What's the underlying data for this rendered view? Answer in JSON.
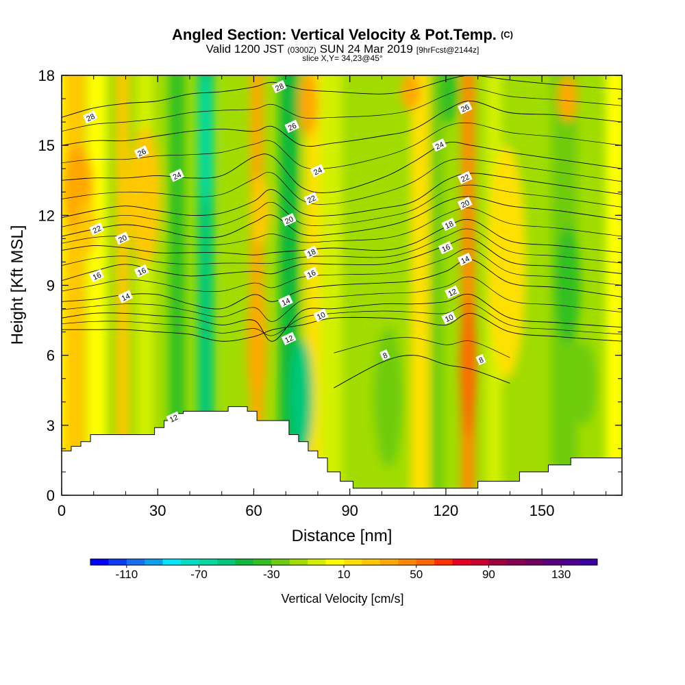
{
  "chart_data": {
    "type": "heatmap",
    "title": "Angled Section: Vertical Velocity & Pot.Temp.",
    "title_unit": "(C)",
    "subtitle_parts": [
      "Valid 1200 JST",
      "(0300Z)",
      "SUN 24 Mar 2019",
      "[9hrFcst@2144z]"
    ],
    "slice_label": "slice X,Y= 34,23@45°",
    "xlabel": "Distance [nm]",
    "ylabel": "Height [Kft MSL]",
    "xlim": [
      0,
      175
    ],
    "ylim": [
      0,
      18
    ],
    "x_ticks": [
      0,
      30,
      60,
      90,
      120,
      150
    ],
    "x_tick_labels": [
      "0",
      "30",
      "60",
      "90",
      "120",
      "150"
    ],
    "y_ticks": [
      0,
      3,
      6,
      9,
      12,
      15,
      18
    ],
    "y_tick_labels": [
      "0",
      "3",
      "6",
      "9",
      "12",
      "15",
      "18"
    ],
    "colorbar": {
      "label": "Vertical Velocity [cm/s]",
      "min": -130,
      "max": 150,
      "step": 10,
      "tick_values": [
        -110,
        -70,
        -30,
        10,
        50,
        90,
        130
      ],
      "tick_labels": [
        "-110",
        "-70",
        "-30",
        "10",
        "50",
        "90",
        "130"
      ],
      "colors": [
        "#0000ff",
        "#0a3cf5",
        "#1470f0",
        "#0aa0f0",
        "#00e6ff",
        "#00e0c8",
        "#00d8a0",
        "#00c87a",
        "#10b83a",
        "#30c020",
        "#6ecc10",
        "#a0dc00",
        "#d4f000",
        "#ffff00",
        "#ffe000",
        "#ffc800",
        "#ffa800",
        "#ff8800",
        "#ff6800",
        "#ff3000",
        "#e80020",
        "#cc0030",
        "#a00040",
        "#880050",
        "#700060",
        "#5a0080",
        "#4b0090",
        "#3c00a0"
      ]
    },
    "velocity_columns": [
      {
        "x": 0,
        "w": 6,
        "value": 0
      },
      {
        "x": 4,
        "w": 7,
        "value": 20
      },
      {
        "x": 11,
        "w": 6,
        "value": 0
      },
      {
        "x": 19,
        "w": 4,
        "value": 20
      },
      {
        "x": 26,
        "w": 5,
        "value": -10
      },
      {
        "x": 36,
        "w": 5,
        "value": -40
      },
      {
        "x": 45,
        "w": 5,
        "value": -60
      },
      {
        "x": 53,
        "w": 4,
        "value": -20
      },
      {
        "x": 61,
        "w": 4,
        "value": 30
      },
      {
        "x": 71,
        "w": 6,
        "value": -45
      },
      {
        "x": 79,
        "w": 6,
        "value": 10
      },
      {
        "x": 84,
        "w": 7,
        "value": -10
      },
      {
        "x": 100,
        "w": 7,
        "value": -20
      },
      {
        "x": 112,
        "w": 6,
        "value": 10
      },
      {
        "x": 117,
        "w": 4,
        "value": -30
      },
      {
        "x": 127,
        "w": 4,
        "value": 40
      },
      {
        "x": 135,
        "w": 5,
        "value": -10
      },
      {
        "x": 157,
        "w": 8,
        "value": -30
      },
      {
        "x": 173,
        "w": 6,
        "value": 0
      }
    ],
    "velocity_patches": [
      {
        "x": 5,
        "y": 13.2,
        "rx": 5,
        "ry": 1.8,
        "value": 30
      },
      {
        "x": 8,
        "y": 11.5,
        "rx": 3,
        "ry": 1.2,
        "value": 20
      },
      {
        "x": 26,
        "y": 12.8,
        "rx": 5,
        "ry": 3,
        "value": 20
      },
      {
        "x": 45,
        "y": 15.2,
        "rx": 2.5,
        "ry": 2.8,
        "value": -70
      },
      {
        "x": 61,
        "y": 6.5,
        "rx": 3,
        "ry": 3,
        "value": 30
      },
      {
        "x": 62,
        "y": 12.2,
        "rx": 3,
        "ry": 1.5,
        "value": 20
      },
      {
        "x": 75,
        "y": 4.2,
        "rx": 3.5,
        "ry": 2.5,
        "value": -55
      },
      {
        "x": 77,
        "y": 16.8,
        "rx": 3,
        "ry": 1.4,
        "value": 30
      },
      {
        "x": 102,
        "y": 4.2,
        "rx": 4.5,
        "ry": 3,
        "value": -30
      },
      {
        "x": 109,
        "y": 17.3,
        "rx": 3,
        "ry": 0.8,
        "value": 30
      },
      {
        "x": 121,
        "y": 17.2,
        "rx": 3,
        "ry": 1.3,
        "value": -40
      },
      {
        "x": 127,
        "y": 5.5,
        "rx": 2.5,
        "ry": 3,
        "value": 50
      },
      {
        "x": 139,
        "y": 10,
        "rx": 6,
        "ry": 5,
        "value": 10
      },
      {
        "x": 158,
        "y": 9,
        "rx": 4,
        "ry": 2.5,
        "value": -40
      },
      {
        "x": 163,
        "y": 4.8,
        "rx": 4,
        "ry": 1.8,
        "value": -30
      },
      {
        "x": 158,
        "y": 17,
        "rx": 3,
        "ry": 1,
        "value": 30
      }
    ],
    "terrain": [
      [
        0,
        1.9
      ],
      [
        3,
        1.9
      ],
      [
        3,
        2.1
      ],
      [
        6,
        2.1
      ],
      [
        6,
        2.3
      ],
      [
        9,
        2.3
      ],
      [
        9,
        2.6
      ],
      [
        29,
        2.6
      ],
      [
        29,
        2.9
      ],
      [
        32,
        2.9
      ],
      [
        32,
        3.2
      ],
      [
        35,
        3.2
      ],
      [
        35,
        3.5
      ],
      [
        38,
        3.5
      ],
      [
        38,
        3.6
      ],
      [
        52,
        3.6
      ],
      [
        52,
        3.8
      ],
      [
        58,
        3.8
      ],
      [
        58,
        3.6
      ],
      [
        61,
        3.6
      ],
      [
        61,
        3.2
      ],
      [
        71,
        3.2
      ],
      [
        71,
        2.6
      ],
      [
        74,
        2.6
      ],
      [
        74,
        2.3
      ],
      [
        77,
        2.3
      ],
      [
        77,
        1.9
      ],
      [
        80,
        1.9
      ],
      [
        80,
        1.6
      ],
      [
        83,
        1.6
      ],
      [
        83,
        1.0
      ],
      [
        87,
        1.0
      ],
      [
        87,
        0.6
      ],
      [
        91,
        0.6
      ],
      [
        91,
        0.3
      ],
      [
        130,
        0.3
      ],
      [
        130,
        0.6
      ],
      [
        143,
        0.6
      ],
      [
        143,
        1.0
      ],
      [
        152,
        1.0
      ],
      [
        152,
        1.3
      ],
      [
        159,
        1.3
      ],
      [
        159,
        1.6
      ],
      [
        175,
        1.6
      ]
    ],
    "isentrope_anchors_x": [
      0,
      10,
      20,
      30,
      40,
      50,
      60,
      66,
      75,
      85,
      100,
      110,
      120,
      128,
      140,
      155,
      175
    ],
    "isentropes": [
      {
        "value": 8,
        "labeled": true,
        "y": [
          null,
          null,
          null,
          null,
          null,
          null,
          null,
          null,
          null,
          4.6,
          5.7,
          6.0,
          5.6,
          5.4,
          4.8,
          null,
          null
        ]
      },
      {
        "value": 10,
        "labeled": true,
        "y": [
          7.1,
          7.1,
          7.1,
          7.0,
          6.9,
          6.6,
          6.8,
          7.1,
          7.3,
          7.6,
          7.6,
          7.5,
          7.3,
          7.8,
          7.0,
          6.8,
          6.6
        ]
      },
      {
        "value": 12,
        "labeled": true,
        "y": [
          7.6,
          7.8,
          7.8,
          7.7,
          7.6,
          7.3,
          7.5,
          6.6,
          7.9,
          8.0,
          8.2,
          8.2,
          8.3,
          8.6,
          7.6,
          7.4,
          7.2
        ]
      },
      {
        "value": 14,
        "labeled": true,
        "y": [
          8.3,
          8.4,
          8.6,
          8.6,
          8.2,
          8.0,
          8.6,
          8.3,
          8.8,
          9.0,
          9.1,
          9.2,
          9.6,
          10.1,
          9.1,
          8.9,
          8.5
        ]
      },
      {
        "value": 16,
        "labeled": true,
        "y": [
          9.2,
          9.6,
          9.9,
          9.6,
          9.4,
          9.5,
          9.6,
          9.5,
          9.9,
          9.9,
          9.9,
          10.2,
          10.7,
          11.0,
          10.0,
          9.8,
          9.5
        ]
      },
      {
        "value": 18,
        "labeled": true,
        "y": [
          10.5,
          10.7,
          10.6,
          10.4,
          10.4,
          10.4,
          10.3,
          10.4,
          10.5,
          10.6,
          10.5,
          10.8,
          11.5,
          11.8,
          10.9,
          10.7,
          10.4
        ]
      },
      {
        "value": 20,
        "labeled": true,
        "y": [
          11.1,
          11.4,
          11.6,
          11.4,
          11.1,
          11.1,
          11.7,
          12.0,
          11.2,
          11.2,
          11.5,
          11.9,
          12.6,
          12.8,
          12.4,
          12.2,
          11.8
        ]
      },
      {
        "value": 22,
        "labeled": true,
        "y": [
          11.9,
          12.2,
          12.4,
          12.2,
          12.0,
          12.1,
          12.6,
          13.1,
          12.1,
          12.0,
          12.3,
          12.6,
          13.5,
          13.8,
          13.6,
          13.3,
          12.9
        ]
      },
      {
        "value": 24,
        "labeled": true,
        "y": [
          13.5,
          13.6,
          13.6,
          13.7,
          13.6,
          13.7,
          14.5,
          14.5,
          13.2,
          13.0,
          13.6,
          14.3,
          15.1,
          15.0,
          14.7,
          14.4,
          14.0
        ]
      },
      {
        "value": 26,
        "labeled": true,
        "y": [
          15.0,
          15.2,
          15.2,
          15.4,
          15.6,
          15.7,
          15.6,
          15.8,
          15.0,
          15.1,
          15.4,
          15.7,
          16.5,
          16.9,
          16.4,
          16.3,
          16.0
        ]
      },
      {
        "value": 28,
        "labeled": true,
        "y": [
          16.2,
          16.6,
          16.8,
          16.9,
          17.2,
          17.3,
          17.5,
          17.7,
          17.4,
          17.3,
          17.2,
          17.4,
          17.8,
          18.0,
          17.8,
          17.6,
          17.4
        ]
      }
    ],
    "isentrope_labels": [
      {
        "text": "28",
        "x": 9,
        "y": 16.2
      },
      {
        "text": "26",
        "x": 25,
        "y": 14.7
      },
      {
        "text": "24",
        "x": 36,
        "y": 13.7
      },
      {
        "text": "22",
        "x": 11,
        "y": 11.4
      },
      {
        "text": "20",
        "x": 19,
        "y": 11.0
      },
      {
        "text": "16",
        "x": 11,
        "y": 9.4
      },
      {
        "text": "16",
        "x": 25,
        "y": 9.6
      },
      {
        "text": "14",
        "x": 20,
        "y": 8.5
      },
      {
        "text": "12",
        "x": 35,
        "y": 3.3
      },
      {
        "text": "28",
        "x": 68,
        "y": 17.5
      },
      {
        "text": "26",
        "x": 72,
        "y": 15.8
      },
      {
        "text": "24",
        "x": 80,
        "y": 13.9
      },
      {
        "text": "22",
        "x": 78,
        "y": 12.7
      },
      {
        "text": "20",
        "x": 71,
        "y": 11.8
      },
      {
        "text": "18",
        "x": 78,
        "y": 10.4
      },
      {
        "text": "16",
        "x": 78,
        "y": 9.5
      },
      {
        "text": "14",
        "x": 70,
        "y": 8.3
      },
      {
        "text": "12",
        "x": 71,
        "y": 6.7
      },
      {
        "text": "10",
        "x": 81,
        "y": 7.7
      },
      {
        "text": "8",
        "x": 101,
        "y": 6.0
      },
      {
        "text": "26",
        "x": 126,
        "y": 16.6
      },
      {
        "text": "24",
        "x": 118,
        "y": 15.0
      },
      {
        "text": "22",
        "x": 126,
        "y": 13.6
      },
      {
        "text": "20",
        "x": 126,
        "y": 12.5
      },
      {
        "text": "18",
        "x": 121,
        "y": 11.6
      },
      {
        "text": "16",
        "x": 120,
        "y": 10.6
      },
      {
        "text": "14",
        "x": 126,
        "y": 10.1
      },
      {
        "text": "12",
        "x": 122,
        "y": 8.7
      },
      {
        "text": "10",
        "x": 121,
        "y": 7.6
      },
      {
        "text": "8",
        "x": 131,
        "y": 5.8
      }
    ]
  }
}
